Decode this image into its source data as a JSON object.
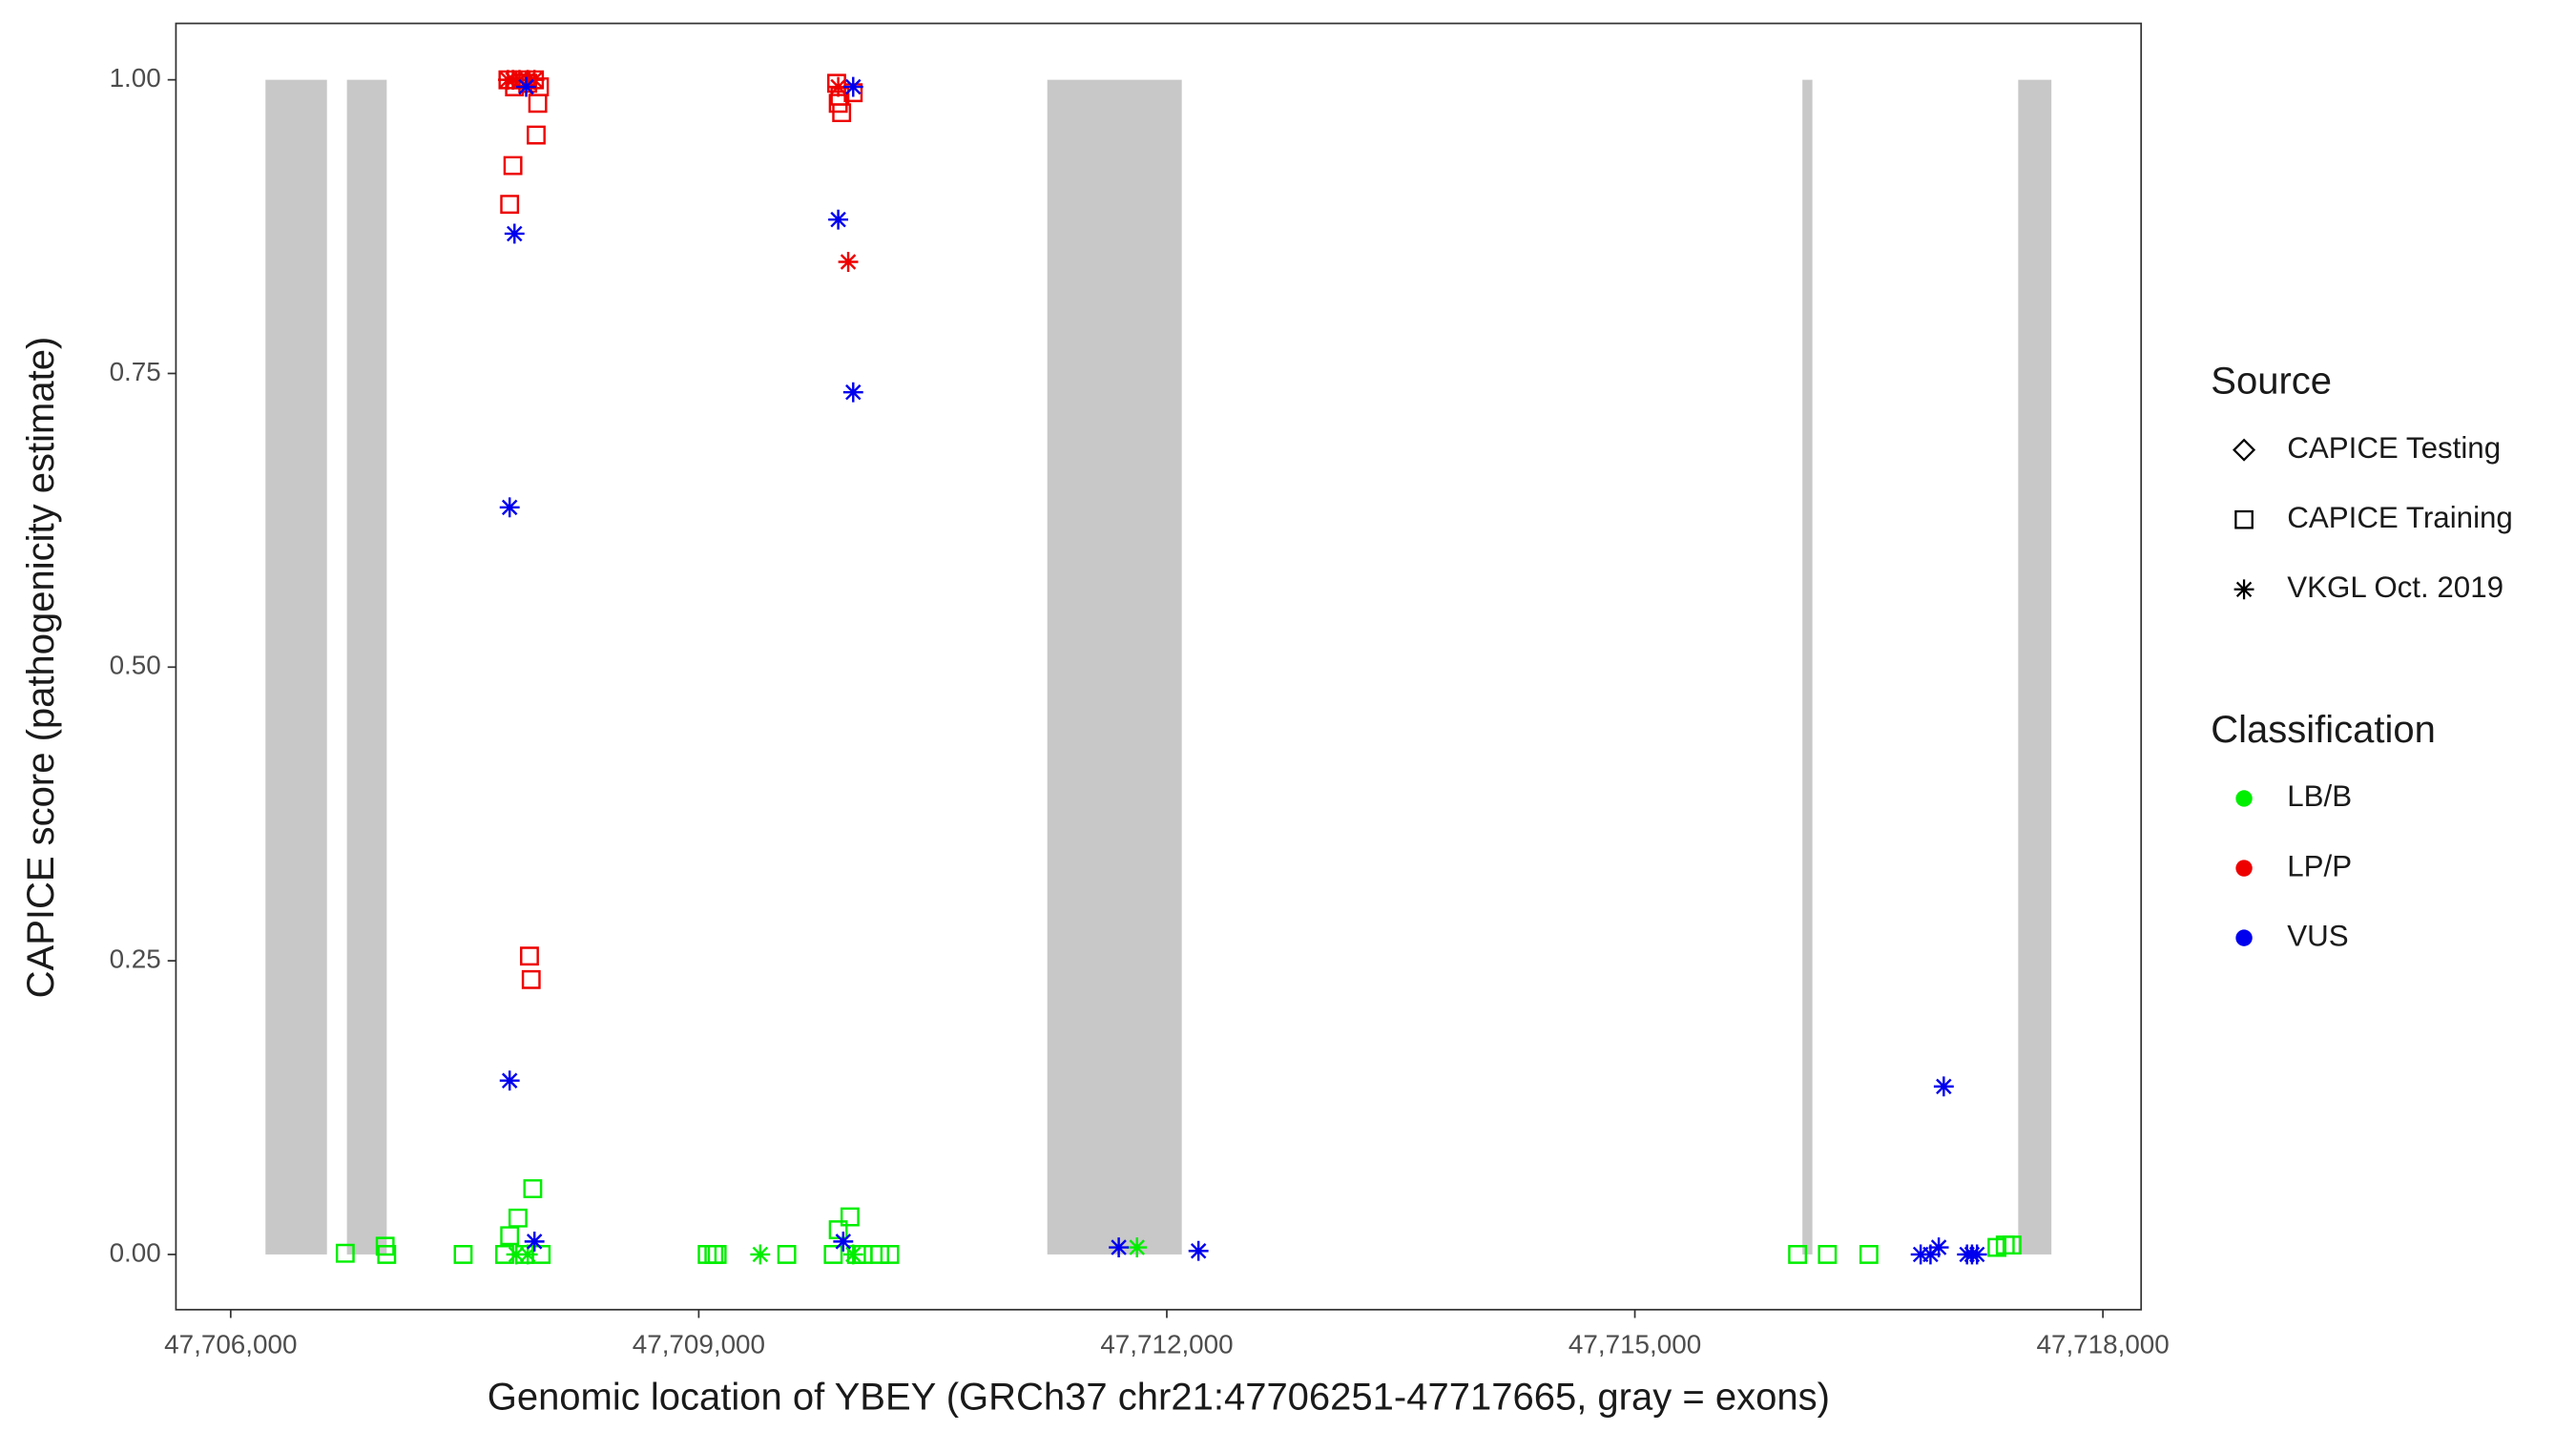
{
  "chart_data": {
    "type": "scatter",
    "x_label": "Genomic location of YBEY (GRCh37 chr21:47706251-47717665, gray = exons)",
    "y_label": "CAPICE score (pathogenicity estimate)",
    "xlim": [
      47705649,
      47718245
    ],
    "ylim": [
      -0.047,
      1.048
    ],
    "xticks": [
      {
        "value": 47706000,
        "label": "47,706,000"
      },
      {
        "value": 47709000,
        "label": "47,709,000"
      },
      {
        "value": 47712000,
        "label": "47,712,000"
      },
      {
        "value": 47715000,
        "label": "47,715,000"
      },
      {
        "value": 47718000,
        "label": "47,718,000"
      }
    ],
    "yticks": [
      {
        "value": 0,
        "label": "0.00"
      },
      {
        "value": 0.25,
        "label": "0.25"
      },
      {
        "value": 0.5,
        "label": "0.50"
      },
      {
        "value": 0.75,
        "label": "0.75"
      },
      {
        "value": 1,
        "label": "1.00"
      }
    ],
    "exon_color": "#c8c8c8",
    "exons": [
      [
        47706223,
        47706617
      ],
      [
        47706745,
        47707000
      ],
      [
        47711234,
        47712096
      ],
      [
        47716074,
        47716138
      ],
      [
        47717457,
        47717670
      ]
    ],
    "shape_legend": {
      "title": "Source",
      "entries": [
        {
          "name": "CAPICE Testing",
          "shape": "diamond"
        },
        {
          "name": "CAPICE Training",
          "shape": "square"
        },
        {
          "name": "VKGL Oct. 2019",
          "shape": "asterisk"
        }
      ]
    },
    "color_legend": {
      "title": "Classification",
      "entries": [
        {
          "name": "LB/B",
          "color": "#00ee00"
        },
        {
          "name": "LP/P",
          "color": "#ee0000"
        },
        {
          "name": "VUS",
          "color": "#0000ee"
        }
      ]
    },
    "series": [
      {
        "classification": 0,
        "shape": "square",
        "x": [
          47706734,
          47706990,
          47707000,
          47707490,
          47707756,
          47707788,
          47707841,
          47707936,
          47707883,
          47707990,
          47709054,
          47709097,
          47709118,
          47709564,
          47709862,
          47709894,
          47709969,
          47710011,
          47710054,
          47710160,
          47710224,
          47716043,
          47716234,
          47716500,
          47717321,
          47717374,
          47717417
        ],
        "values": [
          0.001,
          0.007,
          0,
          0,
          0,
          0.016,
          0.031,
          0.056,
          0,
          0,
          0,
          0,
          0,
          0,
          0,
          0.021,
          0.032,
          0,
          0,
          0,
          0,
          0,
          0,
          0,
          0.006,
          0.008,
          0.008
        ]
      },
      {
        "classification": 0,
        "shape": "asterisk",
        "x": [
          47709394,
          47709990,
          47711809,
          47707830,
          47707904
        ],
        "values": [
          0,
          0,
          0.006,
          0,
          0
        ]
      },
      {
        "classification": 1,
        "shape": "square",
        "x": [
          47707777,
          47707819,
          47707862,
          47707904,
          47707947,
          47707979,
          47707968,
          47707958,
          47707809,
          47707788,
          47707915,
          47707926,
          47709884,
          47709905,
          47709894,
          47709916,
          47709990
        ],
        "values": [
          1,
          0.994,
          1,
          0.997,
          1,
          0.994,
          0.98,
          0.953,
          0.927,
          0.894,
          0.254,
          0.234,
          0.997,
          0.986,
          0.98,
          0.972,
          0.989
        ]
      },
      {
        "classification": 1,
        "shape": "asterisk",
        "x": [
          47707777,
          47707809,
          47707851,
          47707904,
          47707947,
          47709958,
          47709894
        ],
        "values": [
          1,
          1,
          1,
          1,
          1,
          0.845,
          0.994
        ]
      },
      {
        "classification": 2,
        "shape": "asterisk",
        "x": [
          47707819,
          47707788,
          47707788,
          47707894,
          47707947,
          47709894,
          47709990,
          47709990,
          47709926,
          47711692,
          47712203,
          47716980,
          47716832,
          47716895,
          47716948,
          47717129,
          47717161,
          47717193
        ],
        "values": [
          0.869,
          0.636,
          0.148,
          0.994,
          0.011,
          0.881,
          0.994,
          0.734,
          0.011,
          0.006,
          0.003,
          0.143,
          0,
          0,
          0.006,
          0,
          0,
          0
        ]
      }
    ]
  }
}
